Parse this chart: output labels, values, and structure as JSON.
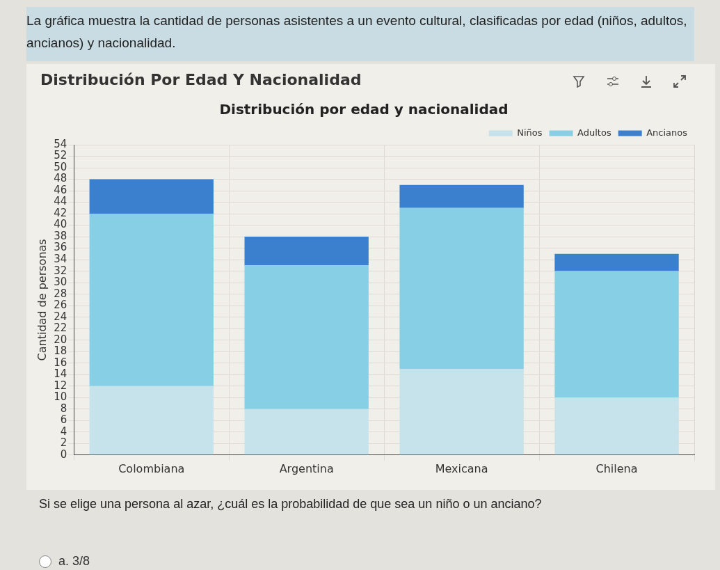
{
  "chart_data": {
    "type": "bar",
    "title": "Distribución Por Edad Y Nacionalidad",
    "subtitle": "Distribución por edad y nacionalidad",
    "ylabel": "Cantidad de personas",
    "annotations": [
      "La gráfica muestra la cantidad de personas asistentes a un evento cultural, clasificadas por edad (niños, adultos, ancianos) y nacionalidad.",
      "Si se elige una persona al azar, ¿cuál es la probabilidad de que sea un niño o un anciano?",
      "a.   3/8"
    ],
    "categories": [
      "Colombiana",
      "Argentina",
      "Mexicana",
      "Chilena"
    ],
    "stacked": true,
    "series": [
      {
        "name": "Niños",
        "color": "#c6e2ea",
        "values": [
          12,
          8,
          15,
          10
        ]
      },
      {
        "name": "Adultos",
        "color": "#86cfe4",
        "values": [
          30,
          25,
          28,
          22
        ]
      },
      {
        "name": "Ancianos",
        "color": "#3a80cf",
        "values": [
          6,
          5,
          4,
          3
        ]
      }
    ],
    "ylim": [
      0,
      54
    ],
    "yticks": [
      0,
      2,
      4,
      6,
      8,
      10,
      12,
      14,
      16,
      18,
      20,
      22,
      24,
      26,
      28,
      30,
      32,
      34,
      36,
      38,
      40,
      42,
      44,
      46,
      48,
      50,
      52,
      54
    ],
    "grid": true,
    "legend": "top right"
  }
}
